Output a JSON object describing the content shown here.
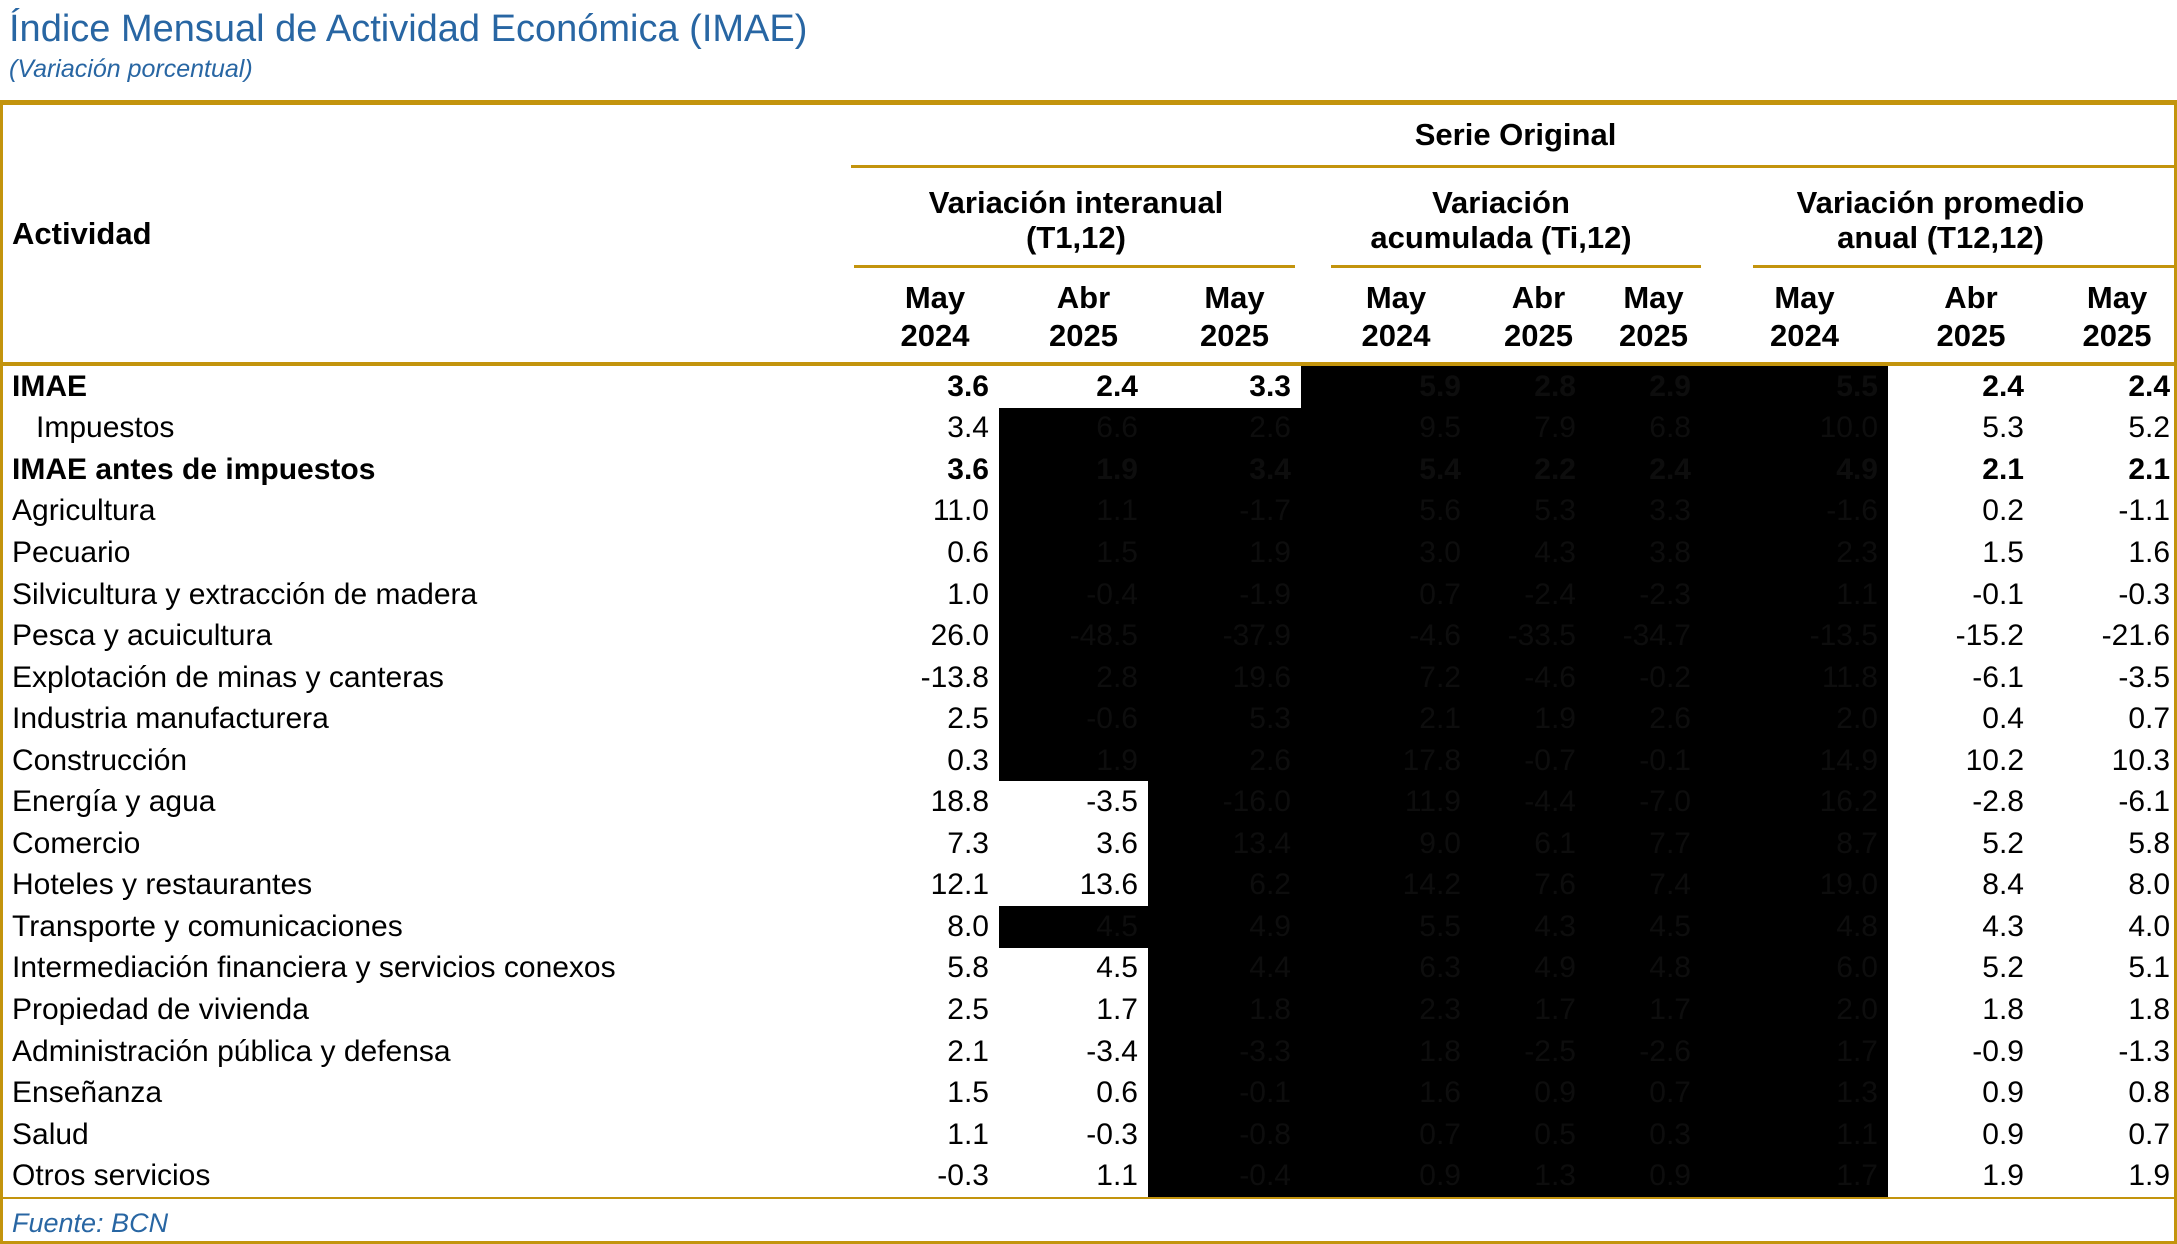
{
  "title": "Índice Mensual de Actividad Económica (IMAE)",
  "subtitle": "(Variación porcentual)",
  "source": "Fuente: BCN",
  "colors": {
    "accent_gold": "#C3940D",
    "title_blue": "#2866A3",
    "redaction_fill": "#000000"
  },
  "table": {
    "serie_header": "Serie Original",
    "activity_header": "Actividad",
    "groups": [
      {
        "label": "Variación interanual\n(T1,12)"
      },
      {
        "label": "Variación\nacumulada (Ti,12)"
      },
      {
        "label": "Variación promedio\nanual (T12,12)"
      }
    ],
    "month_headers": [
      "May\n2024",
      "Abr\n2025",
      "May\n2025",
      "May\n2024",
      "Abr\n2025",
      "May\n2025",
      "May\n2024",
      "Abr\n2025",
      "May\n2025"
    ],
    "rows": [
      {
        "label": "IMAE",
        "bold": true,
        "indent": false,
        "values": [
          "3.6",
          "2.4",
          "3.3",
          "5.9",
          "2.8",
          "2.9",
          "5.5",
          "2.4",
          "2.4"
        ],
        "redacted": [
          false,
          false,
          false,
          true,
          true,
          true,
          true,
          false,
          false
        ]
      },
      {
        "label": "Impuestos",
        "bold": false,
        "indent": true,
        "values": [
          "3.4",
          "6.6",
          "2.6",
          "9.5",
          "7.9",
          "6.8",
          "10.0",
          "5.3",
          "5.2"
        ],
        "redacted": [
          false,
          true,
          true,
          true,
          true,
          true,
          true,
          false,
          false
        ]
      },
      {
        "label": "IMAE antes de impuestos",
        "bold": true,
        "indent": false,
        "values": [
          "3.6",
          "1.9",
          "3.4",
          "5.4",
          "2.2",
          "2.4",
          "4.9",
          "2.1",
          "2.1"
        ],
        "redacted": [
          false,
          true,
          true,
          true,
          true,
          true,
          true,
          false,
          false
        ]
      },
      {
        "label": "Agricultura",
        "bold": false,
        "indent": false,
        "values": [
          "11.0",
          "1.1",
          "-1.7",
          "5.6",
          "5.3",
          "3.3",
          "-1.6",
          "0.2",
          "-1.1"
        ],
        "redacted": [
          false,
          true,
          true,
          true,
          true,
          true,
          true,
          false,
          false
        ]
      },
      {
        "label": "Pecuario",
        "bold": false,
        "indent": false,
        "values": [
          "0.6",
          "1.5",
          "1.9",
          "3.0",
          "4.3",
          "3.8",
          "2.3",
          "1.5",
          "1.6"
        ],
        "redacted": [
          false,
          true,
          true,
          true,
          true,
          true,
          true,
          false,
          false
        ]
      },
      {
        "label": "Silvicultura y extracción de madera",
        "bold": false,
        "indent": false,
        "values": [
          "1.0",
          "-0.4",
          "-1.9",
          "0.7",
          "-2.4",
          "-2.3",
          "1.1",
          "-0.1",
          "-0.3"
        ],
        "redacted": [
          false,
          true,
          true,
          true,
          true,
          true,
          true,
          false,
          false
        ]
      },
      {
        "label": "Pesca y acuicultura",
        "bold": false,
        "indent": false,
        "values": [
          "26.0",
          "-48.5",
          "-37.9",
          "-4.6",
          "-33.5",
          "-34.7",
          "-13.5",
          "-15.2",
          "-21.6"
        ],
        "redacted": [
          false,
          true,
          true,
          true,
          true,
          true,
          true,
          false,
          false
        ]
      },
      {
        "label": "Explotación de minas y canteras",
        "bold": false,
        "indent": false,
        "values": [
          "-13.8",
          "2.8",
          "19.6",
          "7.2",
          "-4.6",
          "-0.2",
          "11.8",
          "-6.1",
          "-3.5"
        ],
        "redacted": [
          false,
          true,
          true,
          true,
          true,
          true,
          true,
          false,
          false
        ]
      },
      {
        "label": "Industria manufacturera",
        "bold": false,
        "indent": false,
        "values": [
          "2.5",
          "-0.6",
          "5.3",
          "2.1",
          "1.9",
          "2.6",
          "2.0",
          "0.4",
          "0.7"
        ],
        "redacted": [
          false,
          true,
          true,
          true,
          true,
          true,
          true,
          false,
          false
        ]
      },
      {
        "label": "Construcción",
        "bold": false,
        "indent": false,
        "values": [
          "0.3",
          "1.9",
          "2.6",
          "17.8",
          "-0.7",
          "-0.1",
          "14.9",
          "10.2",
          "10.3"
        ],
        "redacted": [
          false,
          true,
          true,
          true,
          true,
          true,
          true,
          false,
          false
        ]
      },
      {
        "label": "Energía y agua",
        "bold": false,
        "indent": false,
        "values": [
          "18.8",
          "-3.5",
          "-16.0",
          "11.9",
          "-4.4",
          "-7.0",
          "16.2",
          "-2.8",
          "-6.1"
        ],
        "redacted": [
          false,
          false,
          true,
          true,
          true,
          true,
          true,
          false,
          false
        ]
      },
      {
        "label": "Comercio",
        "bold": false,
        "indent": false,
        "values": [
          "7.3",
          "3.6",
          "13.4",
          "9.0",
          "6.1",
          "7.7",
          "8.7",
          "5.2",
          "5.8"
        ],
        "redacted": [
          false,
          false,
          true,
          true,
          true,
          true,
          true,
          false,
          false
        ]
      },
      {
        "label": "Hoteles y restaurantes",
        "bold": false,
        "indent": false,
        "values": [
          "12.1",
          "13.6",
          "6.2",
          "14.2",
          "7.6",
          "7.4",
          "19.0",
          "8.4",
          "8.0"
        ],
        "redacted": [
          false,
          false,
          true,
          true,
          true,
          true,
          true,
          false,
          false
        ]
      },
      {
        "label": "Transporte y comunicaciones",
        "bold": false,
        "indent": false,
        "values": [
          "8.0",
          "4.5",
          "4.9",
          "5.5",
          "4.3",
          "4.5",
          "4.8",
          "4.3",
          "4.0"
        ],
        "redacted": [
          false,
          true,
          true,
          true,
          true,
          true,
          true,
          false,
          false
        ]
      },
      {
        "label": "Intermediación financiera y servicios conexos",
        "bold": false,
        "indent": false,
        "values": [
          "5.8",
          "4.5",
          "4.4",
          "6.3",
          "4.9",
          "4.8",
          "6.0",
          "5.2",
          "5.1"
        ],
        "redacted": [
          false,
          false,
          true,
          true,
          true,
          true,
          true,
          false,
          false
        ]
      },
      {
        "label": "Propiedad de vivienda",
        "bold": false,
        "indent": false,
        "values": [
          "2.5",
          "1.7",
          "1.8",
          "2.3",
          "1.7",
          "1.7",
          "2.0",
          "1.8",
          "1.8"
        ],
        "redacted": [
          false,
          false,
          true,
          true,
          true,
          true,
          true,
          false,
          false
        ]
      },
      {
        "label": "Administración pública y defensa",
        "bold": false,
        "indent": false,
        "values": [
          "2.1",
          "-3.4",
          "-3.3",
          "1.8",
          "-2.5",
          "-2.6",
          "1.7",
          "-0.9",
          "-1.3"
        ],
        "redacted": [
          false,
          false,
          true,
          true,
          true,
          true,
          true,
          false,
          false
        ]
      },
      {
        "label": "Enseñanza",
        "bold": false,
        "indent": false,
        "values": [
          "1.5",
          "0.6",
          "-0.1",
          "1.6",
          "0.9",
          "0.7",
          "1.3",
          "0.9",
          "0.8"
        ],
        "redacted": [
          false,
          false,
          true,
          true,
          true,
          true,
          true,
          false,
          false
        ]
      },
      {
        "label": "Salud",
        "bold": false,
        "indent": false,
        "values": [
          "1.1",
          "-0.3",
          "-0.8",
          "0.7",
          "0.5",
          "0.3",
          "1.1",
          "0.9",
          "0.7"
        ],
        "redacted": [
          false,
          false,
          true,
          true,
          true,
          true,
          true,
          false,
          false
        ]
      },
      {
        "label": "Otros servicios",
        "bold": false,
        "indent": false,
        "values": [
          "-0.3",
          "1.1",
          "-0.4",
          "0.9",
          "1.3",
          "0.9",
          "1.7",
          "1.9",
          "1.9"
        ],
        "redacted": [
          false,
          false,
          true,
          true,
          true,
          true,
          true,
          false,
          false
        ]
      }
    ]
  }
}
